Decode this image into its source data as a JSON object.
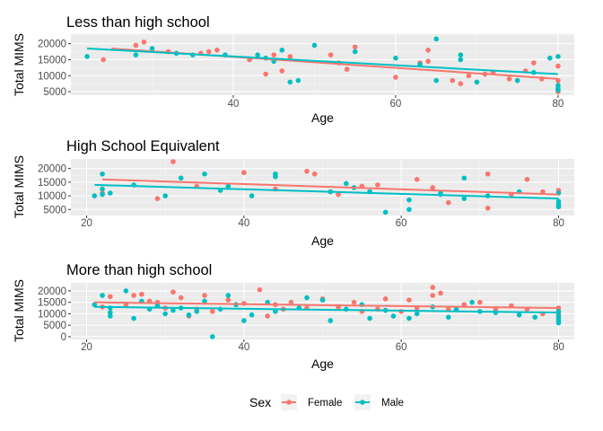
{
  "chart_data": {
    "type": "scatter",
    "facets": [
      {
        "title": "Less than high school",
        "xlabel": "Age",
        "ylabel": "Total MIMS",
        "xlim": [
          20,
          82
        ],
        "ylim": [
          3900,
          23000
        ],
        "xticks": [
          40,
          60,
          80
        ],
        "yticks": [
          5000,
          10000,
          15000,
          20000
        ],
        "series": [
          {
            "name": "Female",
            "points": [
              [
                24,
                15000
              ],
              [
                28,
                19500
              ],
              [
                29,
                20500
              ],
              [
                32,
                17500
              ],
              [
                36,
                17000
              ],
              [
                37,
                17500
              ],
              [
                38,
                18000
              ],
              [
                42,
                15000
              ],
              [
                44,
                10500
              ],
              [
                45,
                16500
              ],
              [
                46,
                11500
              ],
              [
                47,
                16000
              ],
              [
                52,
                16500
              ],
              [
                53,
                14000
              ],
              [
                54,
                12000
              ],
              [
                55,
                19000
              ],
              [
                60,
                9500
              ],
              [
                63,
                14000
              ],
              [
                64,
                14500
              ],
              [
                64,
                18000
              ],
              [
                67,
                8500
              ],
              [
                68,
                7500
              ],
              [
                69,
                10000
              ],
              [
                71,
                10500
              ],
              [
                72,
                11000
              ],
              [
                74,
                9000
              ],
              [
                75,
                8500
              ],
              [
                76,
                11500
              ],
              [
                77,
                14000
              ],
              [
                78,
                9000
              ],
              [
                80,
                13000
              ],
              [
                80,
                8500
              ],
              [
                80,
                5000
              ]
            ],
            "fit": [
              [
                25,
                18500
              ],
              [
                80,
                9000
              ]
            ]
          },
          {
            "name": "Male",
            "points": [
              [
                22,
                16000
              ],
              [
                28,
                16500
              ],
              [
                30,
                18500
              ],
              [
                33,
                17000
              ],
              [
                35,
                16500
              ],
              [
                39,
                16500
              ],
              [
                43,
                16500
              ],
              [
                44,
                15500
              ],
              [
                45,
                14500
              ],
              [
                46,
                18000
              ],
              [
                47,
                8000
              ],
              [
                48,
                8500
              ],
              [
                50,
                19500
              ],
              [
                55,
                17500
              ],
              [
                60,
                15500
              ],
              [
                63,
                13500
              ],
              [
                65,
                21500
              ],
              [
                65,
                8500
              ],
              [
                68,
                15000
              ],
              [
                68,
                16500
              ],
              [
                70,
                8000
              ],
              [
                75,
                8500
              ],
              [
                77,
                11000
              ],
              [
                79,
                15500
              ],
              [
                80,
                16000
              ],
              [
                80,
                7000
              ],
              [
                80,
                6000
              ],
              [
                80,
                5500
              ]
            ],
            "fit": [
              [
                22,
                18500
              ],
              [
                80,
                10500
              ]
            ]
          }
        ]
      },
      {
        "title": "High School Equivalent",
        "xlabel": "Age",
        "ylabel": "Total MIMS",
        "xlim": [
          18,
          82
        ],
        "ylim": [
          2800,
          23500
        ],
        "xticks": [
          20,
          40,
          60,
          80
        ],
        "yticks": [
          5000,
          10000,
          15000,
          20000
        ],
        "series": [
          {
            "name": "Female",
            "points": [
              [
                22,
                11000
              ],
              [
                29,
                9000
              ],
              [
                31,
                22500
              ],
              [
                34,
                13500
              ],
              [
                40,
                18500
              ],
              [
                44,
                12500
              ],
              [
                48,
                19000
              ],
              [
                49,
                18000
              ],
              [
                52,
                10500
              ],
              [
                55,
                13500
              ],
              [
                57,
                14000
              ],
              [
                62,
                16000
              ],
              [
                64,
                13000
              ],
              [
                66,
                7500
              ],
              [
                71,
                18000
              ],
              [
                71,
                5500
              ],
              [
                74,
                10500
              ],
              [
                76,
                16000
              ],
              [
                78,
                11500
              ],
              [
                80,
                12000
              ],
              [
                80,
                6000
              ]
            ],
            "fit": [
              [
                22,
                16000
              ],
              [
                80,
                10500
              ]
            ]
          },
          {
            "name": "Male",
            "points": [
              [
                21,
                10000
              ],
              [
                22,
                18000
              ],
              [
                22,
                12500
              ],
              [
                22,
                10500
              ],
              [
                23,
                11000
              ],
              [
                26,
                14000
              ],
              [
                30,
                10000
              ],
              [
                32,
                16500
              ],
              [
                35,
                18000
              ],
              [
                37,
                12000
              ],
              [
                38,
                13500
              ],
              [
                41,
                10000
              ],
              [
                44,
                18000
              ],
              [
                44,
                17000
              ],
              [
                51,
                11500
              ],
              [
                53,
                14500
              ],
              [
                54,
                13000
              ],
              [
                56,
                11500
              ],
              [
                58,
                4000
              ],
              [
                61,
                8500
              ],
              [
                61,
                5000
              ],
              [
                65,
                11000
              ],
              [
                65,
                10500
              ],
              [
                68,
                16500
              ],
              [
                68,
                9000
              ],
              [
                71,
                10000
              ],
              [
                75,
                11500
              ],
              [
                80,
                11000
              ],
              [
                80,
                8000
              ],
              [
                80,
                7000
              ],
              [
                80,
                6000
              ]
            ],
            "fit": [
              [
                21,
                14000
              ],
              [
                80,
                9000
              ]
            ]
          }
        ]
      },
      {
        "title": "More than high school",
        "xlabel": "Age",
        "ylabel": "Total MIMS",
        "xlim": [
          18,
          82
        ],
        "ylim": [
          -1200,
          23500
        ],
        "xticks": [
          20,
          40,
          60,
          80
        ],
        "yticks": [
          0,
          5000,
          10000,
          15000,
          20000
        ],
        "series": [
          {
            "name": "Female",
            "points": [
              [
                22,
                13000
              ],
              [
                23,
                17500
              ],
              [
                25,
                14000
              ],
              [
                26,
                18000
              ],
              [
                27,
                18500
              ],
              [
                28,
                15500
              ],
              [
                29,
                15000
              ],
              [
                30,
                12500
              ],
              [
                31,
                19500
              ],
              [
                32,
                17000
              ],
              [
                33,
                9000
              ],
              [
                34,
                12000
              ],
              [
                35,
                18000
              ],
              [
                36,
                11000
              ],
              [
                38,
                16000
              ],
              [
                40,
                14500
              ],
              [
                42,
                20500
              ],
              [
                43,
                9000
              ],
              [
                44,
                14000
              ],
              [
                45,
                12000
              ],
              [
                46,
                15000
              ],
              [
                48,
                12500
              ],
              [
                50,
                16500
              ],
              [
                52,
                13000
              ],
              [
                54,
                15000
              ],
              [
                55,
                11000
              ],
              [
                57,
                12000
              ],
              [
                58,
                16500
              ],
              [
                60,
                11000
              ],
              [
                61,
                16000
              ],
              [
                62,
                12500
              ],
              [
                64,
                18000
              ],
              [
                64,
                21500
              ],
              [
                65,
                19000
              ],
              [
                66,
                12000
              ],
              [
                68,
                14000
              ],
              [
                70,
                15000
              ],
              [
                72,
                12000
              ],
              [
                74,
                13500
              ],
              [
                76,
                12000
              ],
              [
                78,
                10000
              ],
              [
                80,
                12500
              ],
              [
                80,
                10000
              ]
            ],
            "fit": [
              [
                21,
                15000
              ],
              [
                80,
                12500
              ]
            ]
          },
          {
            "name": "Male",
            "points": [
              [
                21,
                14000
              ],
              [
                22,
                18000
              ],
              [
                23,
                12500
              ],
              [
                23,
                10500
              ],
              [
                23,
                9000
              ],
              [
                25,
                20000
              ],
              [
                26,
                8000
              ],
              [
                27,
                15500
              ],
              [
                28,
                12000
              ],
              [
                29,
                13500
              ],
              [
                30,
                10000
              ],
              [
                31,
                11500
              ],
              [
                32,
                12500
              ],
              [
                33,
                9500
              ],
              [
                34,
                11000
              ],
              [
                35,
                15500
              ],
              [
                36,
                0
              ],
              [
                37,
                12000
              ],
              [
                38,
                18000
              ],
              [
                39,
                14000
              ],
              [
                40,
                7000
              ],
              [
                41,
                9500
              ],
              [
                43,
                15000
              ],
              [
                44,
                11000
              ],
              [
                47,
                12500
              ],
              [
                48,
                17000
              ],
              [
                50,
                16000
              ],
              [
                51,
                7000
              ],
              [
                53,
                12000
              ],
              [
                55,
                14000
              ],
              [
                56,
                8000
              ],
              [
                58,
                11500
              ],
              [
                59,
                9000
              ],
              [
                61,
                8000
              ],
              [
                62,
                10000
              ],
              [
                64,
                13000
              ],
              [
                66,
                8500
              ],
              [
                67,
                12000
              ],
              [
                69,
                15000
              ],
              [
                70,
                11000
              ],
              [
                72,
                10500
              ],
              [
                75,
                9500
              ],
              [
                77,
                8500
              ],
              [
                80,
                11000
              ],
              [
                80,
                9000
              ],
              [
                80,
                8000
              ],
              [
                80,
                7000
              ],
              [
                80,
                6000
              ]
            ],
            "fit": [
              [
                21,
                13000
              ],
              [
                80,
                10500
              ]
            ]
          }
        ]
      }
    ],
    "legend": {
      "title": "Sex",
      "entries": [
        "Female",
        "Male"
      ],
      "position": "bottom"
    },
    "colors": {
      "Female": "#F8766D",
      "Male": "#00BFC4",
      "panel_background": "#EBEBEB",
      "grid_major": "#FFFFFF",
      "grid_minor": "#F5F5F5"
    },
    "grid": true
  }
}
